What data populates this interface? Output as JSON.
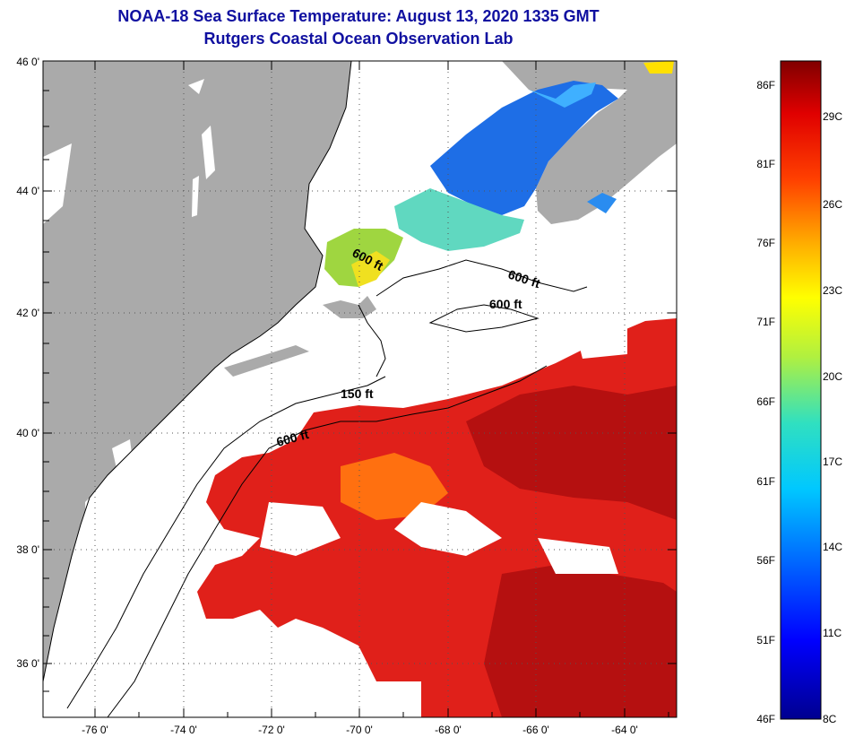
{
  "header": {
    "title": "NOAA-18 Sea Surface Temperature:  August 13, 2020 1335 GMT",
    "subtitle": "Rutgers Coastal Ocean Observation Lab"
  },
  "axes": {
    "lat_labels": [
      "46 0'",
      "44 0'",
      "42 0'",
      "40 0'",
      "38 0'",
      "36 0'"
    ],
    "lon_labels": [
      "-76 0'",
      "-74 0'",
      "-72 0'",
      "-70 0'",
      "-68 0'",
      "-66 0'",
      "-64 0'"
    ]
  },
  "contours": {
    "label_600_a": "600 ft",
    "label_600_b": "600 ft",
    "label_600_c": "600 ft",
    "label_600_d": "600 ft",
    "label_150": "150 ft"
  },
  "colorbar": {
    "fahrenheit": [
      "86F",
      "81F",
      "76F",
      "71F",
      "66F",
      "61F",
      "56F",
      "51F",
      "46F"
    ],
    "celsius": [
      "29C",
      "26C",
      "23C",
      "20C",
      "17C",
      "14C",
      "11C",
      "8C"
    ]
  },
  "colors": {
    "land": "#aaaaaa",
    "warm": "#e0201a",
    "hot": "#b51010",
    "cool": "#1e6ee6",
    "mid": "#9fd640"
  }
}
